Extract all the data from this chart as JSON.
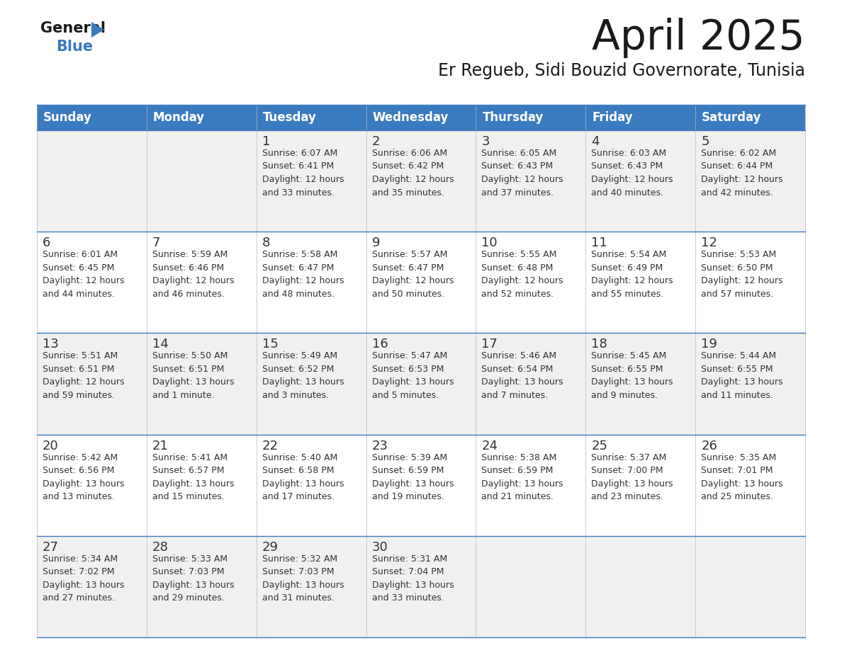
{
  "title": "April 2025",
  "subtitle": "Er Regueb, Sidi Bouzid Governorate, Tunisia",
  "header_bg": "#3a7abf",
  "header_text": "#ffffff",
  "row_bg_even": "#f0f0f0",
  "row_bg_odd": "#ffffff",
  "divider_color": "#3a7abf",
  "text_color": "#333333",
  "days_of_week": [
    "Sunday",
    "Monday",
    "Tuesday",
    "Wednesday",
    "Thursday",
    "Friday",
    "Saturday"
  ],
  "calendar": [
    [
      {
        "day": null,
        "info": null
      },
      {
        "day": null,
        "info": null
      },
      {
        "day": 1,
        "info": "Sunrise: 6:07 AM\nSunset: 6:41 PM\nDaylight: 12 hours\nand 33 minutes."
      },
      {
        "day": 2,
        "info": "Sunrise: 6:06 AM\nSunset: 6:42 PM\nDaylight: 12 hours\nand 35 minutes."
      },
      {
        "day": 3,
        "info": "Sunrise: 6:05 AM\nSunset: 6:43 PM\nDaylight: 12 hours\nand 37 minutes."
      },
      {
        "day": 4,
        "info": "Sunrise: 6:03 AM\nSunset: 6:43 PM\nDaylight: 12 hours\nand 40 minutes."
      },
      {
        "day": 5,
        "info": "Sunrise: 6:02 AM\nSunset: 6:44 PM\nDaylight: 12 hours\nand 42 minutes."
      }
    ],
    [
      {
        "day": 6,
        "info": "Sunrise: 6:01 AM\nSunset: 6:45 PM\nDaylight: 12 hours\nand 44 minutes."
      },
      {
        "day": 7,
        "info": "Sunrise: 5:59 AM\nSunset: 6:46 PM\nDaylight: 12 hours\nand 46 minutes."
      },
      {
        "day": 8,
        "info": "Sunrise: 5:58 AM\nSunset: 6:47 PM\nDaylight: 12 hours\nand 48 minutes."
      },
      {
        "day": 9,
        "info": "Sunrise: 5:57 AM\nSunset: 6:47 PM\nDaylight: 12 hours\nand 50 minutes."
      },
      {
        "day": 10,
        "info": "Sunrise: 5:55 AM\nSunset: 6:48 PM\nDaylight: 12 hours\nand 52 minutes."
      },
      {
        "day": 11,
        "info": "Sunrise: 5:54 AM\nSunset: 6:49 PM\nDaylight: 12 hours\nand 55 minutes."
      },
      {
        "day": 12,
        "info": "Sunrise: 5:53 AM\nSunset: 6:50 PM\nDaylight: 12 hours\nand 57 minutes."
      }
    ],
    [
      {
        "day": 13,
        "info": "Sunrise: 5:51 AM\nSunset: 6:51 PM\nDaylight: 12 hours\nand 59 minutes."
      },
      {
        "day": 14,
        "info": "Sunrise: 5:50 AM\nSunset: 6:51 PM\nDaylight: 13 hours\nand 1 minute."
      },
      {
        "day": 15,
        "info": "Sunrise: 5:49 AM\nSunset: 6:52 PM\nDaylight: 13 hours\nand 3 minutes."
      },
      {
        "day": 16,
        "info": "Sunrise: 5:47 AM\nSunset: 6:53 PM\nDaylight: 13 hours\nand 5 minutes."
      },
      {
        "day": 17,
        "info": "Sunrise: 5:46 AM\nSunset: 6:54 PM\nDaylight: 13 hours\nand 7 minutes."
      },
      {
        "day": 18,
        "info": "Sunrise: 5:45 AM\nSunset: 6:55 PM\nDaylight: 13 hours\nand 9 minutes."
      },
      {
        "day": 19,
        "info": "Sunrise: 5:44 AM\nSunset: 6:55 PM\nDaylight: 13 hours\nand 11 minutes."
      }
    ],
    [
      {
        "day": 20,
        "info": "Sunrise: 5:42 AM\nSunset: 6:56 PM\nDaylight: 13 hours\nand 13 minutes."
      },
      {
        "day": 21,
        "info": "Sunrise: 5:41 AM\nSunset: 6:57 PM\nDaylight: 13 hours\nand 15 minutes."
      },
      {
        "day": 22,
        "info": "Sunrise: 5:40 AM\nSunset: 6:58 PM\nDaylight: 13 hours\nand 17 minutes."
      },
      {
        "day": 23,
        "info": "Sunrise: 5:39 AM\nSunset: 6:59 PM\nDaylight: 13 hours\nand 19 minutes."
      },
      {
        "day": 24,
        "info": "Sunrise: 5:38 AM\nSunset: 6:59 PM\nDaylight: 13 hours\nand 21 minutes."
      },
      {
        "day": 25,
        "info": "Sunrise: 5:37 AM\nSunset: 7:00 PM\nDaylight: 13 hours\nand 23 minutes."
      },
      {
        "day": 26,
        "info": "Sunrise: 5:35 AM\nSunset: 7:01 PM\nDaylight: 13 hours\nand 25 minutes."
      }
    ],
    [
      {
        "day": 27,
        "info": "Sunrise: 5:34 AM\nSunset: 7:02 PM\nDaylight: 13 hours\nand 27 minutes."
      },
      {
        "day": 28,
        "info": "Sunrise: 5:33 AM\nSunset: 7:03 PM\nDaylight: 13 hours\nand 29 minutes."
      },
      {
        "day": 29,
        "info": "Sunrise: 5:32 AM\nSunset: 7:03 PM\nDaylight: 13 hours\nand 31 minutes."
      },
      {
        "day": 30,
        "info": "Sunrise: 5:31 AM\nSunset: 7:04 PM\nDaylight: 13 hours\nand 33 minutes."
      },
      {
        "day": null,
        "info": null
      },
      {
        "day": null,
        "info": null
      },
      {
        "day": null,
        "info": null
      }
    ]
  ]
}
